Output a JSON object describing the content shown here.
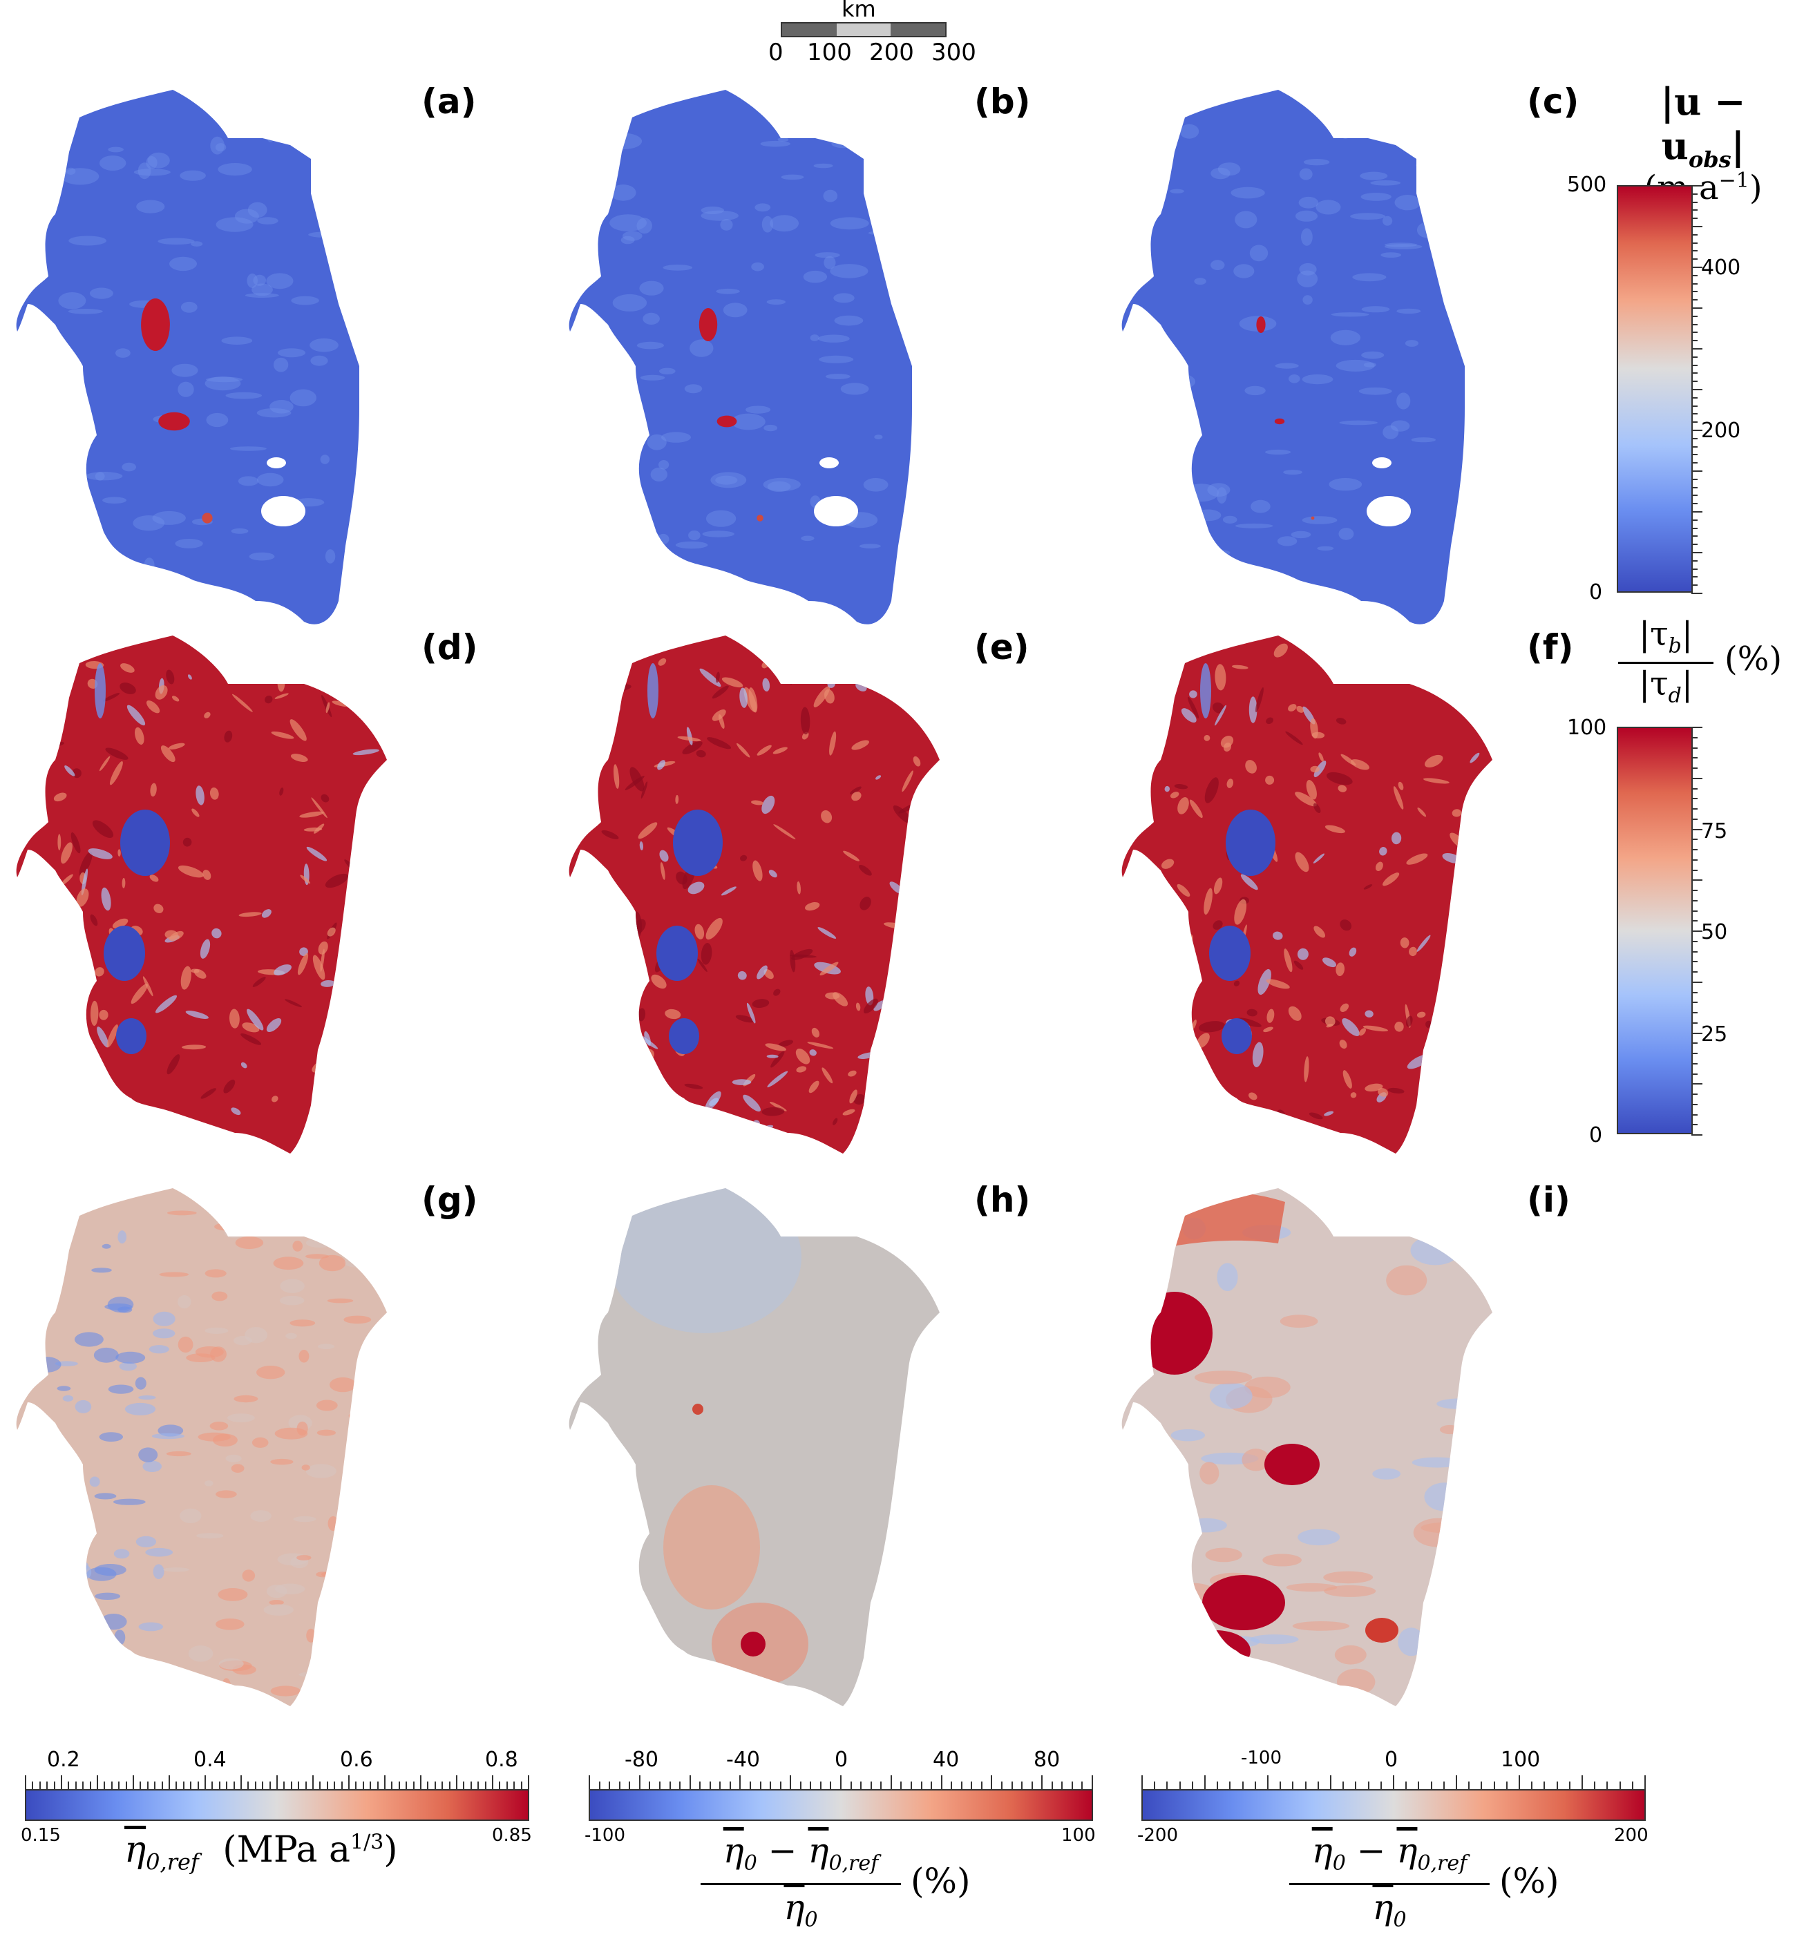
{
  "scalebar": {
    "unit": "km",
    "ticks": [
      "0",
      "100",
      "200",
      "300"
    ]
  },
  "panels": [
    {
      "id": "a",
      "label": "(a)",
      "field": "velocity-misfit",
      "scheme": "a"
    },
    {
      "id": "b",
      "label": "(b)",
      "field": "velocity-misfit",
      "scheme": "b"
    },
    {
      "id": "c",
      "label": "(c)",
      "field": "velocity-misfit",
      "scheme": "c"
    },
    {
      "id": "d",
      "label": "(d)",
      "field": "basal-drag-ratio",
      "scheme": "d"
    },
    {
      "id": "e",
      "label": "(e)",
      "field": "basal-drag-ratio",
      "scheme": "e"
    },
    {
      "id": "f",
      "label": "(f)",
      "field": "basal-drag-ratio",
      "scheme": "f"
    },
    {
      "id": "g",
      "label": "(g)",
      "field": "viscosity-reference",
      "scheme": "g"
    },
    {
      "id": "h",
      "label": "(h)",
      "field": "viscosity-change",
      "scheme": "h"
    },
    {
      "id": "i",
      "label": "(i)",
      "field": "viscosity-change",
      "scheme": "i"
    }
  ],
  "colorbars": {
    "velocity": {
      "title_line1": "|u − u",
      "title_sub": "obs",
      "title_line1_end": "|",
      "title_line2": "(m a",
      "title_sup": "−1",
      "title_line2_end": ")",
      "ticks": [
        "500",
        "400",
        "200",
        "0"
      ],
      "minor_label": "",
      "low_color": "#3b4cc0",
      "high_color": "#b40426"
    },
    "drag": {
      "numerator": "|τ",
      "num_sub": "b",
      "num_end": "|",
      "denominator": "|τ",
      "den_sub": "d",
      "den_end": "|",
      "unit": "(%)",
      "ticks": [
        "100",
        "75",
        "50",
        "25",
        "0"
      ]
    },
    "eta_ref": {
      "top_ticks": [
        "0.2",
        "0.4",
        "0.6",
        "0.8"
      ],
      "min": "0.15",
      "max": "0.85",
      "title_symbol": "η",
      "title_sub": "0,ref",
      "title_unit": "(MPa a",
      "title_sup": "1/3",
      "title_unit_end": ")"
    },
    "eta_change_h": {
      "top_ticks": [
        "-80",
        "-40",
        "0",
        "40",
        "80"
      ],
      "min": "-100",
      "max": "100",
      "num_a": "η",
      "num_a_sub": "0",
      "num_minus": " − ",
      "num_b": "η",
      "num_b_sub": "0,ref",
      "den": "η",
      "den_sub": "0",
      "unit": "(%)"
    },
    "eta_change_i": {
      "top_ticks": [
        "-100",
        "0",
        "100"
      ],
      "min": "-200",
      "max": "200",
      "num_a": "η",
      "num_a_sub": "0",
      "num_minus": " − ",
      "num_b": "η",
      "num_b_sub": "0,ref",
      "den": "η",
      "den_sub": "0",
      "unit": "(%)"
    }
  },
  "colors": {
    "cool": "#3b4cc0",
    "mid": "#dddddd",
    "warm": "#b40426"
  }
}
